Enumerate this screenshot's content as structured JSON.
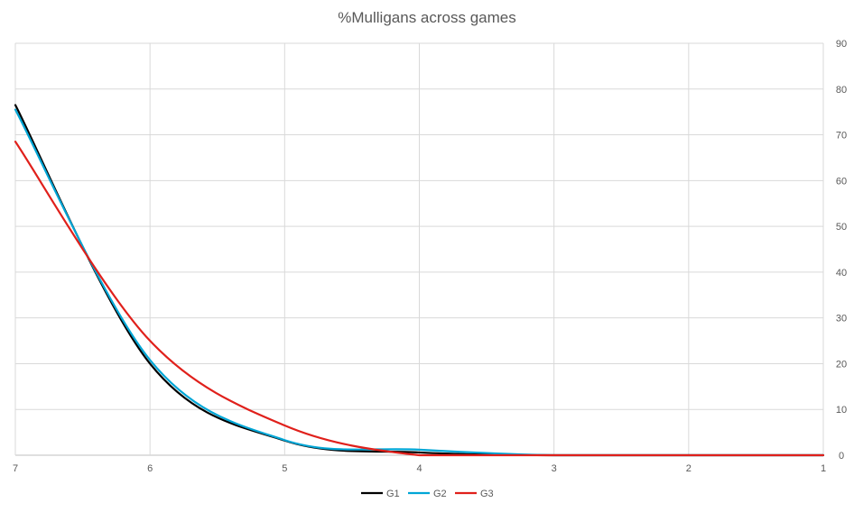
{
  "chart_data": {
    "type": "line",
    "title": "%Mulligans across games",
    "xlabel": "",
    "ylabel": "",
    "x": [
      7,
      6,
      5,
      4,
      3,
      2,
      1
    ],
    "x_reversed": true,
    "ylim": [
      0,
      90
    ],
    "y_ticks": [
      0,
      10,
      20,
      30,
      40,
      50,
      60,
      70,
      80,
      90
    ],
    "y_axis_position": "right",
    "grid": true,
    "legend_position": "bottom",
    "series": [
      {
        "name": "G1",
        "color": "#000000",
        "values": [
          76.5,
          20,
          3.2,
          0.6,
          0,
          0,
          0
        ]
      },
      {
        "name": "G2",
        "color": "#00a6d6",
        "values": [
          75.5,
          20.8,
          3.3,
          1.2,
          0,
          0,
          0
        ]
      },
      {
        "name": "G3",
        "color": "#e0201b",
        "values": [
          68.5,
          25,
          6.5,
          0,
          0,
          0,
          0
        ]
      }
    ]
  }
}
